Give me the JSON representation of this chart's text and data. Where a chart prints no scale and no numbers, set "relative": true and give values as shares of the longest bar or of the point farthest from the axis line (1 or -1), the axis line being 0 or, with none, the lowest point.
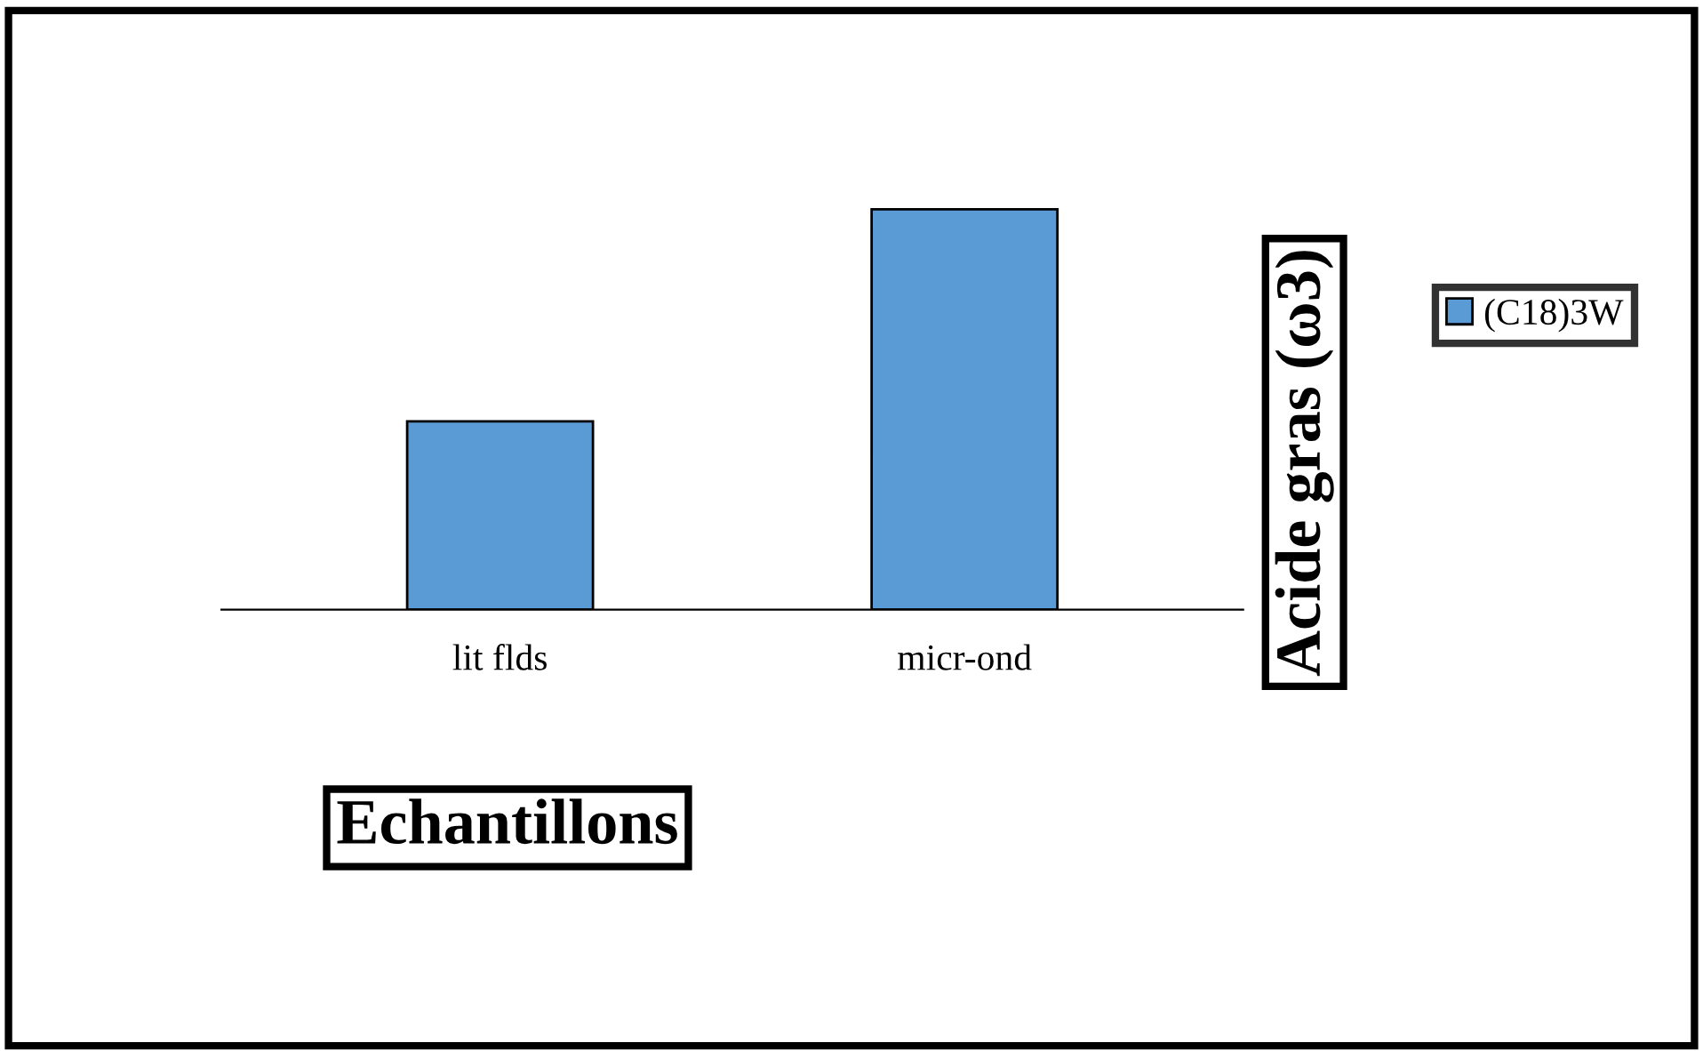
{
  "chart_data": {
    "type": "bar",
    "relative": true,
    "xlabel": "Echantillons",
    "ylabel": "Acide gras (ω3)",
    "categories": [
      "lit flds",
      "micr-ond"
    ],
    "series": [
      {
        "name": "(C18)3W",
        "color": "#5b9bd5",
        "values": [
          0.47,
          1
        ]
      }
    ],
    "legend": "right"
  }
}
